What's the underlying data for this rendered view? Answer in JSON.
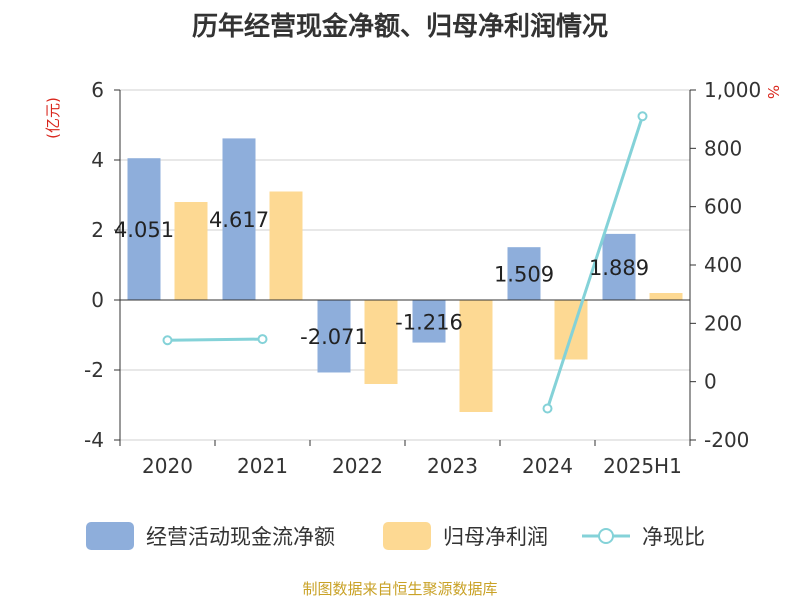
{
  "title": "历年经营现金净额、归母净利润情况",
  "source": "制图数据来自恒生聚源数据库",
  "colors": {
    "operating_cash": "#8eaedb",
    "net_profit": "#fdd993",
    "ratio": "#84d2d8",
    "axis_label": "#d9261c"
  },
  "chart_data": {
    "type": "bar",
    "title": "历年经营现金净额、归母净利润情况",
    "categories": [
      "2020",
      "2021",
      "2022",
      "2023",
      "2024",
      "2025H1"
    ],
    "ylabel": "(亿元)",
    "ylim": [
      -4,
      6
    ],
    "yticks": [
      -4,
      -2,
      0,
      2,
      4,
      6
    ],
    "y2label": "%",
    "y2lim": [
      -200,
      1000
    ],
    "y2ticks": [
      -200,
      0,
      200,
      400,
      600,
      800,
      1000
    ],
    "y2ticklabels": [
      "-200",
      "0",
      "200",
      "400",
      "600",
      "800",
      "1,000"
    ],
    "grid": true,
    "legend_position": "bottom",
    "series": [
      {
        "name": "经营活动现金流净额",
        "type": "bar",
        "axis": "left",
        "values": [
          4.051,
          4.617,
          -2.071,
          -1.216,
          1.509,
          1.889
        ],
        "labels": [
          "4.051",
          "4.617",
          "-2.071",
          "-1.216",
          "1.509",
          "1.889"
        ]
      },
      {
        "name": "归母净利润",
        "type": "bar",
        "axis": "left",
        "values": [
          2.8,
          3.1,
          -2.4,
          -3.2,
          -1.7,
          0.2
        ]
      },
      {
        "name": "净现比",
        "type": "line",
        "axis": "right",
        "values": [
          142,
          146,
          null,
          null,
          -92,
          910
        ]
      }
    ]
  }
}
